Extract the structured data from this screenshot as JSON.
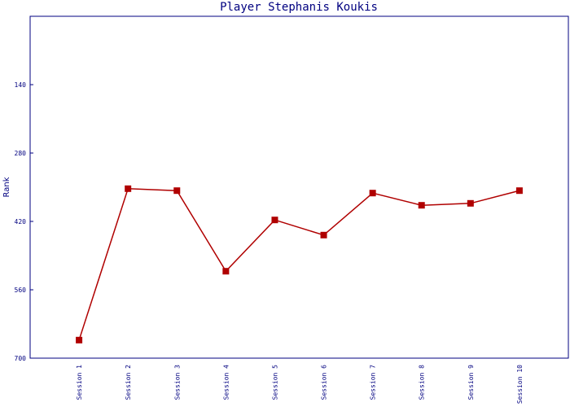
{
  "chart_data": {
    "type": "line",
    "title": "Player Stephanis Koukis",
    "y_label": "Rank",
    "categories": [
      "Session 1",
      "Session 2",
      "Session 3",
      "Session 4",
      "Session 5",
      "Session 6",
      "Session 7",
      "Session 8",
      "Session 9",
      "Session 10"
    ],
    "series": [
      {
        "color": "#b00000",
        "values": [
          663,
          353,
          357,
          522,
          417,
          448,
          362,
          387,
          383,
          357
        ]
      }
    ],
    "ylim": [
      0,
      700
    ],
    "yticks": [
      140,
      280,
      420,
      560,
      700
    ],
    "y_inverted": true,
    "axis_color": "#000080"
  }
}
